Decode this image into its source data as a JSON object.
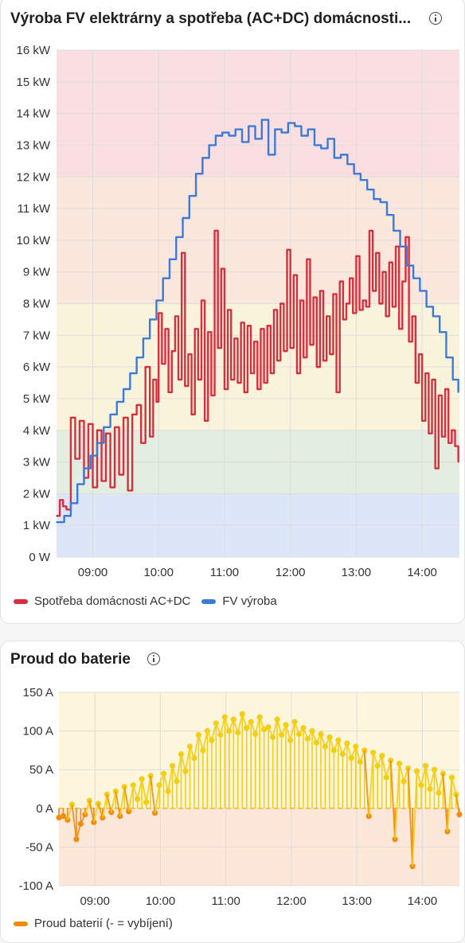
{
  "cards": [
    {
      "title": "Výroba FV elektrárny a spotřeba (AC+DC) domácnosti...",
      "info_icon": "info-circle-icon"
    },
    {
      "title": "Proud do baterie",
      "info_icon": "info-circle-icon"
    }
  ],
  "chart_data": [
    {
      "type": "line",
      "title": "Výroba FV elektrárny a spotřeba (AC+DC) domácnosti...",
      "x_ticks": [
        "09:00",
        "10:00",
        "11:00",
        "12:00",
        "13:00",
        "14:00"
      ],
      "y_ticks": [
        "16 kW",
        "15 kW",
        "14 kW",
        "13 kW",
        "12 kW",
        "11 kW",
        "10 kW",
        "9 kW",
        "8 kW",
        "7 kW",
        "6 kW",
        "5 kW",
        "4 kW",
        "3 kW",
        "2 kW",
        "1 kW",
        "0 W"
      ],
      "ylim": [
        0,
        16
      ],
      "xlim": [
        "08:27",
        "14:34"
      ],
      "grid": true,
      "legend_position": "bottom-left",
      "background_bands": [
        {
          "from": 0,
          "to": 2,
          "color": "#dde5f8"
        },
        {
          "from": 2,
          "to": 4,
          "color": "#e3ede0"
        },
        {
          "from": 4,
          "to": 8,
          "color": "#faf3dc"
        },
        {
          "from": 8,
          "to": 12,
          "color": "#fbe7db"
        },
        {
          "from": 12,
          "to": 16,
          "color": "#f9dfe1"
        }
      ],
      "series": [
        {
          "name": "Spotřeba domácnosti AC+DC",
          "color": "#d62f3e",
          "x": [
            "08:27",
            "08:30",
            "08:33",
            "08:36",
            "08:40",
            "08:44",
            "08:48",
            "08:52",
            "08:56",
            "09:00",
            "09:04",
            "09:08",
            "09:12",
            "09:16",
            "09:20",
            "09:24",
            "09:28",
            "09:32",
            "09:36",
            "09:40",
            "09:44",
            "09:48",
            "09:52",
            "09:55",
            "09:58",
            "10:00",
            "10:03",
            "10:06",
            "10:09",
            "10:12",
            "10:15",
            "10:18",
            "10:21",
            "10:24",
            "10:27",
            "10:30",
            "10:33",
            "10:36",
            "10:39",
            "10:42",
            "10:45",
            "10:48",
            "10:51",
            "10:54",
            "10:57",
            "11:00",
            "11:03",
            "11:06",
            "11:09",
            "11:12",
            "11:15",
            "11:18",
            "11:21",
            "11:24",
            "11:27",
            "11:30",
            "11:33",
            "11:36",
            "11:39",
            "11:42",
            "11:45",
            "11:48",
            "11:51",
            "11:54",
            "11:57",
            "12:00",
            "12:03",
            "12:06",
            "12:09",
            "12:12",
            "12:15",
            "12:18",
            "12:21",
            "12:24",
            "12:27",
            "12:30",
            "12:33",
            "12:36",
            "12:39",
            "12:42",
            "12:45",
            "12:48",
            "12:51",
            "12:54",
            "12:57",
            "13:00",
            "13:03",
            "13:06",
            "13:09",
            "13:12",
            "13:15",
            "13:18",
            "13:21",
            "13:24",
            "13:27",
            "13:30",
            "13:33",
            "13:36",
            "13:39",
            "13:42",
            "13:45",
            "13:48",
            "13:51",
            "13:54",
            "13:57",
            "14:00",
            "14:03",
            "14:06",
            "14:09",
            "14:12",
            "14:15",
            "14:18",
            "14:21",
            "14:24",
            "14:27",
            "14:30",
            "14:33"
          ],
          "y": [
            1.3,
            1.8,
            1.6,
            1.5,
            4.4,
            3.1,
            4.3,
            2.5,
            4.2,
            2.2,
            4.0,
            2.4,
            3.9,
            2.2,
            4.1,
            2.6,
            4.4,
            2.1,
            4.5,
            4.8,
            3.6,
            6.0,
            3.8,
            5.6,
            4.9,
            7.7,
            6.1,
            7.2,
            5.2,
            6.5,
            7.6,
            5.6,
            9.6,
            5.4,
            6.4,
            4.5,
            7.2,
            5.6,
            8.1,
            4.3,
            7.1,
            5.1,
            10.3,
            6.6,
            9.1,
            5.3,
            7.8,
            5.6,
            6.9,
            5.5,
            7.4,
            5.2,
            7.3,
            5.8,
            6.8,
            5.3,
            7.2,
            5.5,
            7.3,
            5.8,
            7.8,
            6.2,
            8.0,
            6.5,
            9.7,
            6.6,
            8.9,
            5.8,
            8.1,
            6.3,
            9.4,
            6.7,
            8.2,
            6.0,
            8.4,
            6.2,
            7.6,
            6.4,
            8.3,
            5.2,
            8.7,
            7.5,
            8.0,
            8.8,
            7.7,
            9.5,
            7.8,
            8.1,
            7.9,
            10.3,
            8.4,
            9.6,
            8.0,
            9.0,
            7.6,
            9.3,
            7.9,
            9.8,
            7.2,
            8.7,
            10.1,
            6.8,
            7.6,
            5.5,
            6.4,
            4.3,
            5.8,
            3.9,
            5.6,
            2.8,
            5.1,
            3.8,
            5.3,
            3.6,
            4.0,
            3.5,
            3.0
          ]
        },
        {
          "name": "FV výroba",
          "color": "#3d7ad6",
          "x": [
            "08:27",
            "08:34",
            "08:40",
            "08:46",
            "08:52",
            "08:58",
            "09:04",
            "09:10",
            "09:16",
            "09:22",
            "09:28",
            "09:34",
            "09:40",
            "09:46",
            "09:52",
            "09:58",
            "10:04",
            "10:10",
            "10:16",
            "10:22",
            "10:28",
            "10:34",
            "10:40",
            "10:46",
            "10:52",
            "10:58",
            "11:04",
            "11:10",
            "11:16",
            "11:22",
            "11:28",
            "11:34",
            "11:40",
            "11:46",
            "11:52",
            "11:58",
            "12:04",
            "12:10",
            "12:16",
            "12:22",
            "12:28",
            "12:34",
            "12:40",
            "12:46",
            "12:52",
            "12:58",
            "13:04",
            "13:10",
            "13:16",
            "13:22",
            "13:28",
            "13:34",
            "13:40",
            "13:46",
            "13:52",
            "13:58",
            "14:04",
            "14:10",
            "14:16",
            "14:22",
            "14:28",
            "14:33"
          ],
          "y": [
            1.1,
            1.3,
            1.7,
            2.3,
            2.8,
            3.2,
            3.6,
            4.1,
            4.5,
            4.9,
            5.3,
            5.8,
            6.3,
            6.9,
            7.5,
            8.1,
            8.8,
            9.4,
            10.1,
            10.7,
            11.4,
            12.1,
            12.6,
            13.0,
            13.3,
            13.4,
            13.3,
            13.5,
            13.1,
            13.6,
            13.2,
            13.8,
            12.7,
            13.5,
            13.4,
            13.7,
            13.6,
            13.3,
            13.5,
            13.0,
            12.9,
            13.2,
            12.6,
            12.7,
            12.4,
            12.1,
            11.9,
            11.6,
            11.3,
            11.2,
            10.8,
            10.3,
            9.8,
            9.2,
            8.8,
            8.4,
            7.9,
            7.6,
            7.1,
            6.3,
            5.6,
            5.2
          ]
        }
      ]
    },
    {
      "type": "scatter",
      "title": "Proud do baterie",
      "x_ticks": [
        "09:00",
        "10:00",
        "11:00",
        "12:00",
        "13:00",
        "14:00"
      ],
      "y_ticks": [
        "150 A",
        "100 A",
        "50 A",
        "0 A",
        "-50 A",
        "-100 A"
      ],
      "ylim": [
        -100,
        150
      ],
      "xlim": [
        "08:27",
        "14:34"
      ],
      "grid": true,
      "legend_position": "bottom-left",
      "background_bands": [
        {
          "from": 0,
          "to": 150,
          "color": "#fdf6dc"
        },
        {
          "from": -100,
          "to": 0,
          "color": "#fde7d8"
        }
      ],
      "series": [
        {
          "name": "Proud baterií (- = vybíjení)",
          "color": "#f08c0f",
          "positive_color": "#f2cf16",
          "x": [
            "08:27",
            "08:31",
            "08:35",
            "08:39",
            "08:43",
            "08:47",
            "08:51",
            "08:55",
            "08:59",
            "09:03",
            "09:07",
            "09:11",
            "09:15",
            "09:19",
            "09:23",
            "09:27",
            "09:31",
            "09:35",
            "09:39",
            "09:43",
            "09:47",
            "09:51",
            "09:55",
            "09:59",
            "10:03",
            "10:07",
            "10:11",
            "10:15",
            "10:19",
            "10:23",
            "10:27",
            "10:31",
            "10:35",
            "10:39",
            "10:43",
            "10:47",
            "10:51",
            "10:55",
            "10:59",
            "11:03",
            "11:07",
            "11:11",
            "11:15",
            "11:19",
            "11:23",
            "11:27",
            "11:31",
            "11:35",
            "11:39",
            "11:43",
            "11:47",
            "11:51",
            "11:55",
            "11:59",
            "12:03",
            "12:07",
            "12:11",
            "12:15",
            "12:19",
            "12:23",
            "12:27",
            "12:31",
            "12:35",
            "12:39",
            "12:43",
            "12:47",
            "12:51",
            "12:55",
            "12:59",
            "13:03",
            "13:07",
            "13:11",
            "13:15",
            "13:19",
            "13:23",
            "13:27",
            "13:31",
            "13:35",
            "13:39",
            "13:43",
            "13:47",
            "13:51",
            "13:55",
            "13:59",
            "14:03",
            "14:07",
            "14:11",
            "14:15",
            "14:19",
            "14:23",
            "14:27",
            "14:31",
            "14:34"
          ],
          "y": [
            -12,
            -10,
            -15,
            5,
            -40,
            -20,
            -8,
            10,
            -18,
            6,
            -12,
            18,
            -5,
            22,
            -10,
            28,
            -4,
            30,
            12,
            38,
            8,
            42,
            -6,
            30,
            45,
            22,
            55,
            35,
            70,
            48,
            80,
            65,
            95,
            75,
            100,
            88,
            110,
            95,
            118,
            100,
            115,
            98,
            122,
            104,
            112,
            96,
            118,
            102,
            105,
            92,
            115,
            95,
            108,
            88,
            112,
            96,
            104,
            90,
            100,
            85,
            96,
            80,
            92,
            75,
            88,
            70,
            84,
            65,
            80,
            60,
            75,
            -10,
            72,
            55,
            68,
            40,
            62,
            -40,
            58,
            35,
            52,
            -75,
            48,
            30,
            55,
            25,
            50,
            20,
            45,
            -30,
            40,
            18,
            -8
          ]
        }
      ]
    }
  ],
  "legend": {
    "consumption_label": "Spotřeba domácnosti AC+DC",
    "pv_label": "FV výroba",
    "battery_label": "Proud baterií (- = vybíjení)"
  }
}
